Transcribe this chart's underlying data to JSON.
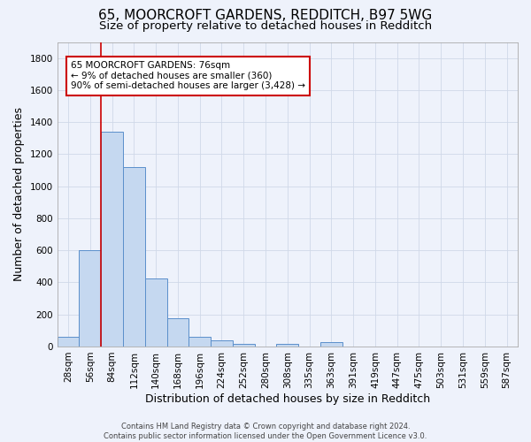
{
  "title_line1": "65, MOORCROFT GARDENS, REDDITCH, B97 5WG",
  "title_line2": "Size of property relative to detached houses in Redditch",
  "xlabel": "Distribution of detached houses by size in Redditch",
  "ylabel": "Number of detached properties",
  "bar_color": "#c5d8f0",
  "bar_edge_color": "#5b8fcb",
  "bg_color": "#eef2fb",
  "grid_color": "#d0d8e8",
  "categories": [
    "28sqm",
    "56sqm",
    "84sqm",
    "112sqm",
    "140sqm",
    "168sqm",
    "196sqm",
    "224sqm",
    "252sqm",
    "280sqm",
    "308sqm",
    "335sqm",
    "363sqm",
    "391sqm",
    "419sqm",
    "447sqm",
    "475sqm",
    "503sqm",
    "531sqm",
    "559sqm",
    "587sqm"
  ],
  "values": [
    60,
    600,
    1340,
    1120,
    425,
    175,
    60,
    40,
    15,
    0,
    15,
    0,
    25,
    0,
    0,
    0,
    0,
    0,
    0,
    0,
    0
  ],
  "vline_color": "#cc0000",
  "vline_pos": 1.5,
  "annotation_text": "65 MOORCROFT GARDENS: 76sqm\n← 9% of detached houses are smaller (360)\n90% of semi-detached houses are larger (3,428) →",
  "annotation_box_color": "#ffffff",
  "annotation_box_edge": "#cc0000",
  "ylim": [
    0,
    1900
  ],
  "yticks": [
    0,
    200,
    400,
    600,
    800,
    1000,
    1200,
    1400,
    1600,
    1800
  ],
  "footnote": "Contains HM Land Registry data © Crown copyright and database right 2024.\nContains public sector information licensed under the Open Government Licence v3.0.",
  "title_fontsize": 11,
  "subtitle_fontsize": 9.5,
  "axis_label_fontsize": 9,
  "tick_fontsize": 7.5,
  "annotation_fontsize": 7.5,
  "footnote_fontsize": 6
}
